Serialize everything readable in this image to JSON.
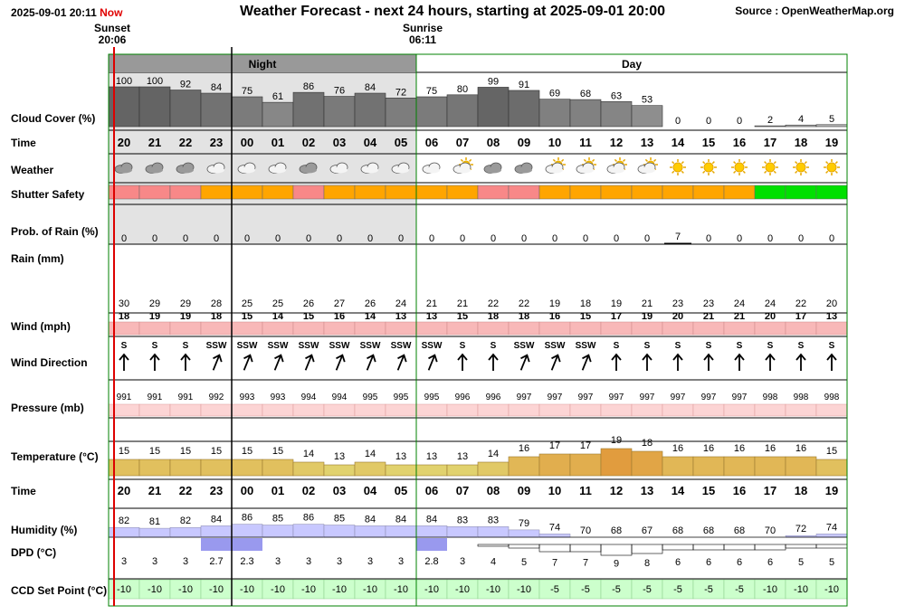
{
  "header": {
    "datetime": "2025-09-01 20:11",
    "now_label": "Now",
    "title": "Weather Forecast - next 24 hours, starting at 2025-09-01 20:00",
    "source": "Source : OpenWeatherMap.org"
  },
  "sunset": {
    "label": "Sunset",
    "time": "20:06"
  },
  "sunrise": {
    "label": "Sunrise",
    "time": "06:11"
  },
  "periods": {
    "night": "Night",
    "day": "Day"
  },
  "rows": {
    "cloud": "Cloud Cover (%)",
    "time": "Time",
    "weather": "Weather",
    "shutter": "Shutter Safety",
    "rain_prob": "Prob. of Rain (%)",
    "rain": "Rain (mm)",
    "wind": "Wind (mph)",
    "wind_dir": "Wind Direction",
    "pressure": "Pressure (mb)",
    "temp": "Temperature (°C)",
    "time2": "Time",
    "humidity": "Humidity (%)",
    "dpd": "DPD (°C)",
    "ccd": "CCD Set Point (°C)"
  },
  "chart_data": {
    "type": "table",
    "hours": [
      "20",
      "21",
      "22",
      "23",
      "00",
      "01",
      "02",
      "03",
      "04",
      "05",
      "06",
      "07",
      "08",
      "09",
      "10",
      "11",
      "12",
      "13",
      "14",
      "15",
      "16",
      "17",
      "18",
      "19"
    ],
    "cloud_cover": [
      100,
      100,
      92,
      84,
      75,
      61,
      86,
      76,
      84,
      72,
      75,
      80,
      99,
      91,
      69,
      68,
      63,
      53,
      0,
      0,
      0,
      2,
      4,
      5
    ],
    "weather_icons": [
      "cloudy",
      "cloudy",
      "cloudy",
      "partly-cloudy-night",
      "partly-cloudy-night",
      "partly-cloudy-night",
      "cloudy",
      "partly-cloudy-night",
      "partly-cloudy-night",
      "partly-cloudy-night",
      "partly-cloudy-night",
      "partly-cloudy-day",
      "cloudy",
      "cloudy",
      "partly-cloudy-day",
      "partly-cloudy-day",
      "partly-cloudy-day",
      "partly-cloudy-day",
      "sunny",
      "sunny",
      "sunny",
      "sunny",
      "sunny",
      "sunny"
    ],
    "shutter_safety": [
      "caution",
      "caution",
      "caution",
      "marginal",
      "marginal",
      "marginal",
      "caution",
      "marginal",
      "marginal",
      "marginal",
      "marginal",
      "marginal",
      "caution",
      "caution",
      "marginal",
      "marginal",
      "marginal",
      "marginal",
      "marginal",
      "marginal",
      "marginal",
      "safe",
      "safe",
      "safe"
    ],
    "rain_probability": [
      0,
      0,
      0,
      0,
      0,
      0,
      0,
      0,
      0,
      0,
      0,
      0,
      0,
      0,
      0,
      0,
      0,
      0,
      7,
      0,
      0,
      0,
      0,
      0
    ],
    "rain_mm": [
      0,
      0,
      0,
      0,
      0,
      0,
      0,
      0,
      0,
      0,
      0,
      0,
      0,
      0,
      0,
      0,
      0,
      0,
      0,
      0,
      0,
      0,
      0,
      0
    ],
    "wind_gust": [
      30,
      29,
      29,
      28,
      25,
      25,
      26,
      27,
      26,
      24,
      21,
      21,
      22,
      22,
      19,
      18,
      19,
      21,
      23,
      23,
      24,
      24,
      22,
      20
    ],
    "wind_speed": [
      18,
      19,
      19,
      18,
      15,
      14,
      15,
      16,
      14,
      13,
      13,
      15,
      18,
      18,
      16,
      15,
      17,
      19,
      20,
      21,
      21,
      20,
      17,
      13
    ],
    "wind_direction": [
      "S",
      "S",
      "S",
      "SSW",
      "SSW",
      "SSW",
      "SSW",
      "SSW",
      "SSW",
      "SSW",
      "SSW",
      "S",
      "S",
      "SSW",
      "SSW",
      "SSW",
      "S",
      "S",
      "S",
      "S",
      "S",
      "S",
      "S",
      "S"
    ],
    "pressure": [
      991,
      991,
      991,
      992,
      993,
      993,
      994,
      994,
      995,
      995,
      995,
      996,
      996,
      997,
      997,
      997,
      997,
      997,
      997,
      997,
      997,
      998,
      998,
      998
    ],
    "temperature": [
      15,
      15,
      15,
      15,
      15,
      15,
      14,
      13,
      14,
      13,
      13,
      13,
      14,
      16,
      17,
      17,
      19,
      18,
      16,
      16,
      16,
      16,
      16,
      15
    ],
    "humidity": [
      82,
      81,
      82,
      84,
      86,
      85,
      86,
      85,
      84,
      84,
      84,
      83,
      83,
      79,
      74,
      70,
      68,
      67,
      68,
      68,
      68,
      70,
      72,
      74
    ],
    "dpd": [
      "3",
      "3",
      "3",
      "2.7",
      "2.3",
      "3",
      "3",
      "3",
      "3",
      "3",
      "2.8",
      "3",
      "4",
      "5",
      "7",
      "7",
      "9",
      "8",
      "6",
      "6",
      "6",
      "6",
      "5",
      "5"
    ],
    "ccd_set_point": [
      -10,
      -10,
      -10,
      -10,
      -10,
      -10,
      -10,
      -10,
      -10,
      -10,
      -10,
      -10,
      -10,
      -10,
      -5,
      -5,
      -5,
      -5,
      -5,
      -5,
      -5,
      -10,
      -10,
      -10
    ],
    "night_hours": 10,
    "colors": {
      "night_bg": "#e3e3e3",
      "shutter_caution": "#f88888",
      "shutter_marginal": "#ffa500",
      "shutter_safe": "#00e000",
      "wind_bar": "#f8b8b8",
      "pressure_bar": "#fcd4d4",
      "ccd_cell": "#ccffcc",
      "sunset_line": "#dd0000",
      "sunrise_line": "#008000",
      "now_line": "#000000"
    }
  }
}
